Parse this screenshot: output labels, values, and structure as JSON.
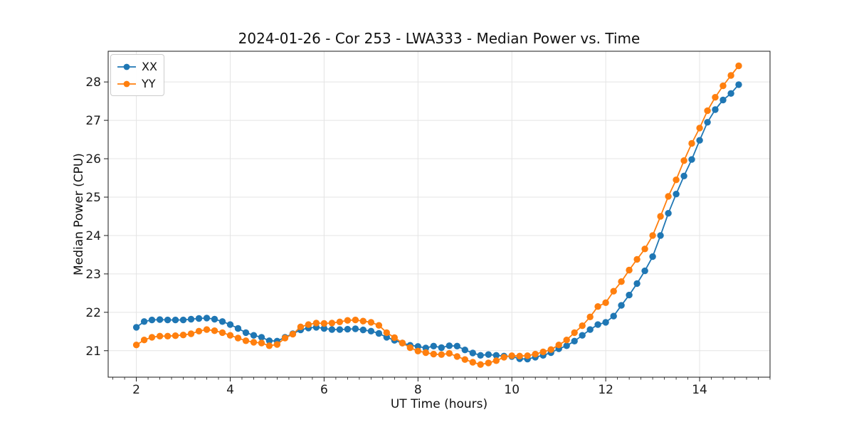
{
  "chart_data": {
    "type": "line",
    "title": "2024-01-26 - Cor 253 - LWA333 - Median Power vs. Time",
    "xlabel": "UT Time (hours)",
    "ylabel": "Median Power (CPU)",
    "xlim": [
      1.4,
      15.5
    ],
    "ylim": [
      20.31,
      28.8
    ],
    "xticks": [
      2,
      4,
      6,
      8,
      10,
      12,
      14
    ],
    "yticks": [
      21,
      22,
      23,
      24,
      25,
      26,
      27,
      28
    ],
    "x_minor_tick_step": 0.25,
    "grid": true,
    "legend_position": "upper-left",
    "x": [
      2.0,
      2.167,
      2.333,
      2.5,
      2.667,
      2.833,
      3.0,
      3.167,
      3.333,
      3.5,
      3.667,
      3.833,
      4.0,
      4.167,
      4.333,
      4.5,
      4.667,
      4.833,
      5.0,
      5.167,
      5.333,
      5.5,
      5.667,
      5.833,
      6.0,
      6.167,
      6.333,
      6.5,
      6.667,
      6.833,
      7.0,
      7.167,
      7.333,
      7.5,
      7.667,
      7.833,
      8.0,
      8.167,
      8.333,
      8.5,
      8.667,
      8.833,
      9.0,
      9.167,
      9.333,
      9.5,
      9.667,
      9.833,
      10.0,
      10.167,
      10.333,
      10.5,
      10.667,
      10.833,
      11.0,
      11.167,
      11.333,
      11.5,
      11.667,
      11.833,
      12.0,
      12.167,
      12.333,
      12.5,
      12.667,
      12.833,
      13.0,
      13.167,
      13.333,
      13.5,
      13.667,
      13.833,
      14.0,
      14.167,
      14.333,
      14.5,
      14.667,
      14.833
    ],
    "series": [
      {
        "name": "XX",
        "color": "#1f77b4",
        "values": [
          21.61,
          21.76,
          21.8,
          21.81,
          21.8,
          21.8,
          21.8,
          21.82,
          21.84,
          21.85,
          21.82,
          21.76,
          21.68,
          21.58,
          21.47,
          21.4,
          21.35,
          21.26,
          21.25,
          21.35,
          21.44,
          21.54,
          21.59,
          21.61,
          21.58,
          21.55,
          21.55,
          21.56,
          21.57,
          21.54,
          21.51,
          21.45,
          21.35,
          21.27,
          21.2,
          21.14,
          21.11,
          21.07,
          21.12,
          21.08,
          21.13,
          21.12,
          21.02,
          20.94,
          20.88,
          20.9,
          20.88,
          20.86,
          20.85,
          20.79,
          20.78,
          20.83,
          20.88,
          20.95,
          21.05,
          21.13,
          21.25,
          21.4,
          21.55,
          21.68,
          21.74,
          21.9,
          22.18,
          22.45,
          22.75,
          23.08,
          23.45,
          24.0,
          24.58,
          25.08,
          25.55,
          25.98,
          26.48,
          26.95,
          27.28,
          27.53,
          27.7,
          27.93
        ]
      },
      {
        "name": "YY",
        "color": "#ff7f0e",
        "values": [
          21.15,
          21.28,
          21.35,
          21.38,
          21.38,
          21.39,
          21.41,
          21.44,
          21.51,
          21.55,
          21.52,
          21.47,
          21.4,
          21.33,
          21.26,
          21.22,
          21.2,
          21.13,
          21.16,
          21.33,
          21.43,
          21.62,
          21.68,
          21.72,
          21.71,
          21.72,
          21.75,
          21.79,
          21.8,
          21.77,
          21.74,
          21.66,
          21.47,
          21.34,
          21.2,
          21.08,
          20.99,
          20.95,
          20.91,
          20.9,
          20.93,
          20.85,
          20.77,
          20.7,
          20.64,
          20.68,
          20.74,
          20.83,
          20.87,
          20.86,
          20.87,
          20.91,
          20.97,
          21.03,
          21.15,
          21.28,
          21.47,
          21.65,
          21.88,
          22.15,
          22.25,
          22.55,
          22.8,
          23.1,
          23.38,
          23.65,
          24.0,
          24.5,
          25.02,
          25.45,
          25.95,
          26.4,
          26.8,
          27.25,
          27.6,
          27.9,
          28.17,
          28.42
        ]
      }
    ]
  }
}
